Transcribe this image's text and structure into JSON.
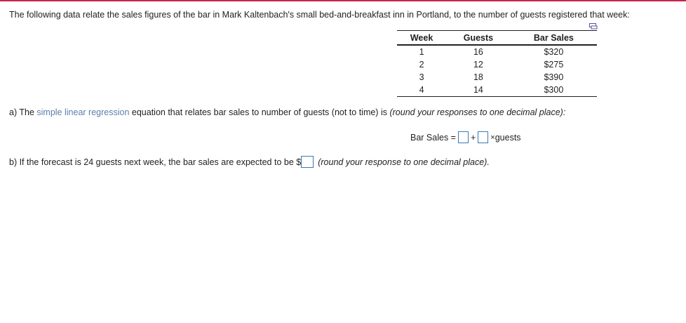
{
  "intro": "The following data relate the sales figures of the bar in Mark Kaltenbach's small bed-and-breakfast inn in Portland, to the number of guests registered that week:",
  "table": {
    "headers": [
      "Week",
      "Guests",
      "Bar Sales"
    ],
    "rows": [
      [
        "1",
        "16",
        "$320"
      ],
      [
        "2",
        "12",
        "$275"
      ],
      [
        "3",
        "18",
        "$390"
      ],
      [
        "4",
        "14",
        "$300"
      ]
    ]
  },
  "part_a": {
    "prefix": "a) The",
    "link": "simple linear regression",
    "middle": "equation that relates bar sales to number of guests (not to time) is",
    "note": "(round your responses to one decimal place):"
  },
  "equation": {
    "lhs": "Bar Sales =",
    "plus": "+",
    "times": "×",
    "var": "guests",
    "intercept": "",
    "slope": ""
  },
  "part_b": {
    "text": "b) If the forecast is 24 guests next week, the bar sales are expected to be $",
    "value": "",
    "note": "(round your response to one decimal place)."
  },
  "colors": {
    "accent_bar": "#c8234b",
    "link": "#5a7fa8",
    "input_border": "#3a7ab8"
  }
}
